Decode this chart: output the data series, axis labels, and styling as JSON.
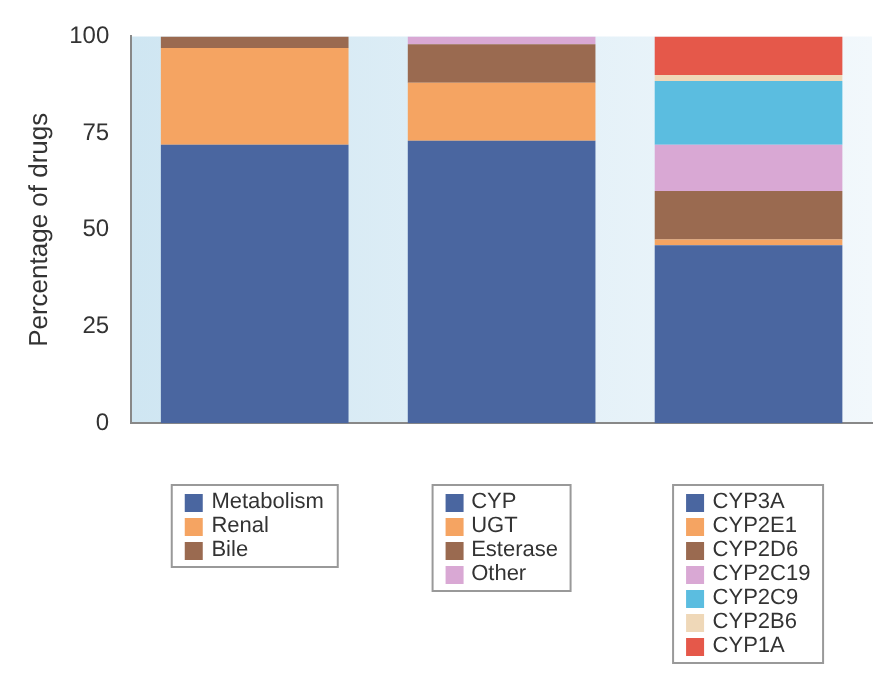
{
  "chart_data": {
    "type": "bar",
    "stacked": true,
    "ylabel": "Percentage of drugs",
    "categories": [
      null,
      null,
      null
    ],
    "ylim": [
      0,
      100
    ],
    "yticks": [
      0,
      25,
      50,
      75,
      100
    ],
    "grid": false,
    "legend": "bottom",
    "series": [
      {
        "name": "Metabolism",
        "color": "#4a66a0",
        "values": [
          72,
          null,
          null
        ]
      },
      {
        "name": "Renal",
        "color": "#f5a462",
        "values": [
          25,
          null,
          null
        ]
      },
      {
        "name": "Bile",
        "color": "#9a6a50",
        "values": [
          3,
          null,
          null
        ]
      },
      {
        "name": "CYP",
        "color": "#4a66a0",
        "values": [
          null,
          73,
          null
        ]
      },
      {
        "name": "UGT",
        "color": "#f5a462",
        "values": [
          null,
          15,
          null
        ]
      },
      {
        "name": "Esterase",
        "color": "#9a6a50",
        "values": [
          null,
          10,
          null
        ]
      },
      {
        "name": "Other",
        "color": "#d9a8d4",
        "values": [
          null,
          2,
          null
        ]
      },
      {
        "name": "CYP3A",
        "color": "#4a66a0",
        "values": [
          null,
          null,
          46
        ]
      },
      {
        "name": "CYP2E1",
        "color": "#f5a462",
        "values": [
          null,
          null,
          1.5
        ]
      },
      {
        "name": "CYP2D6",
        "color": "#9a6a50",
        "values": [
          null,
          null,
          12.5
        ]
      },
      {
        "name": "CYP2C19",
        "color": "#d9a8d4",
        "values": [
          null,
          null,
          12
        ]
      },
      {
        "name": "CYP2C9",
        "color": "#5bbde0",
        "values": [
          null,
          null,
          16.5
        ]
      },
      {
        "name": "CYP2B6",
        "color": "#efd8b8",
        "values": [
          null,
          null,
          1.5
        ]
      },
      {
        "name": "CYP1A",
        "color": "#e5584a",
        "values": [
          null,
          null,
          10
        ]
      }
    ]
  }
}
